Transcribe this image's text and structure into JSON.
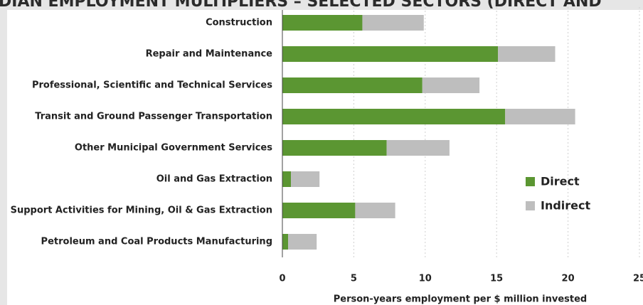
{
  "chart_data": {
    "type": "bar",
    "orientation": "horizontal",
    "stacked": true,
    "title": "DIAN EMPLOYMENT MULTIPLIERS – SELECTED SECTORS (DIRECT AND",
    "x_label": "Person-years employment per $ million invested",
    "categories": [
      "Construction",
      "Repair and Maintenance",
      "Professional, Scientific and Technical Services",
      "Transit and Ground Passenger Transportation",
      "Other Municipal Government Services",
      "Oil and Gas Extraction",
      "Support Activities for Mining, Oil & Gas Extraction",
      "Petroleum and Coal Products Manufacturing"
    ],
    "series": [
      {
        "name": "Direct",
        "color": "#5b9632",
        "values": [
          5.6,
          15.1,
          9.8,
          15.6,
          7.3,
          0.6,
          5.1,
          0.4
        ]
      },
      {
        "name": "Indirect",
        "color": "#bebebe",
        "values": [
          4.3,
          4.0,
          4.0,
          4.9,
          4.4,
          2.0,
          2.8,
          2.0
        ]
      }
    ],
    "xlim": [
      0,
      25
    ],
    "xticks": [
      0,
      5,
      10,
      15,
      20,
      25
    ],
    "grid": true,
    "legend": "right"
  }
}
